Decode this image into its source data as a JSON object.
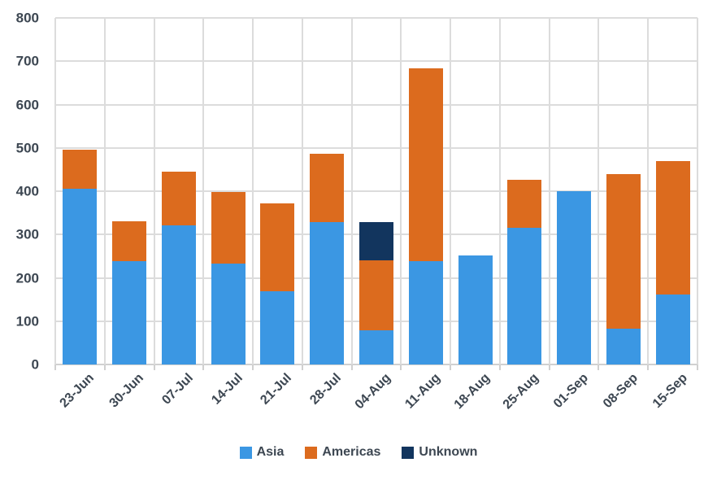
{
  "chart_data": {
    "type": "bar",
    "stacked": true,
    "title": "",
    "xlabel": "",
    "ylabel": "",
    "categories": [
      "23-Jun",
      "30-Jun",
      "07-Jul",
      "14-Jul",
      "21-Jul",
      "28-Jul",
      "04-Aug",
      "11-Aug",
      "18-Aug",
      "25-Aug",
      "01-Sep",
      "08-Sep",
      "15-Sep"
    ],
    "series": [
      {
        "name": "Asia",
        "color": "#3b97e3",
        "values": [
          405,
          238,
          322,
          233,
          169,
          328,
          78,
          238,
          252,
          315,
          400,
          83,
          162
        ]
      },
      {
        "name": "Americas",
        "color": "#dc6b1e",
        "values": [
          90,
          92,
          124,
          165,
          203,
          158,
          162,
          445,
          0,
          112,
          0,
          357,
          308
        ]
      },
      {
        "name": "Unknown",
        "color": "#12355e",
        "values": [
          0,
          0,
          0,
          0,
          0,
          0,
          88,
          0,
          0,
          0,
          0,
          0,
          0
        ]
      }
    ],
    "ylim": [
      0,
      800
    ],
    "ytick_step": 100,
    "ytick_labels": [
      "0",
      "100",
      "200",
      "300",
      "400",
      "500",
      "600",
      "700",
      "800"
    ],
    "grid": true,
    "legend_position": "bottom"
  },
  "style": {
    "background": "#ffffff",
    "text_color": "#3d4752",
    "grid_color": "#dcdcdc",
    "axis_color": "#d0d0d0"
  }
}
